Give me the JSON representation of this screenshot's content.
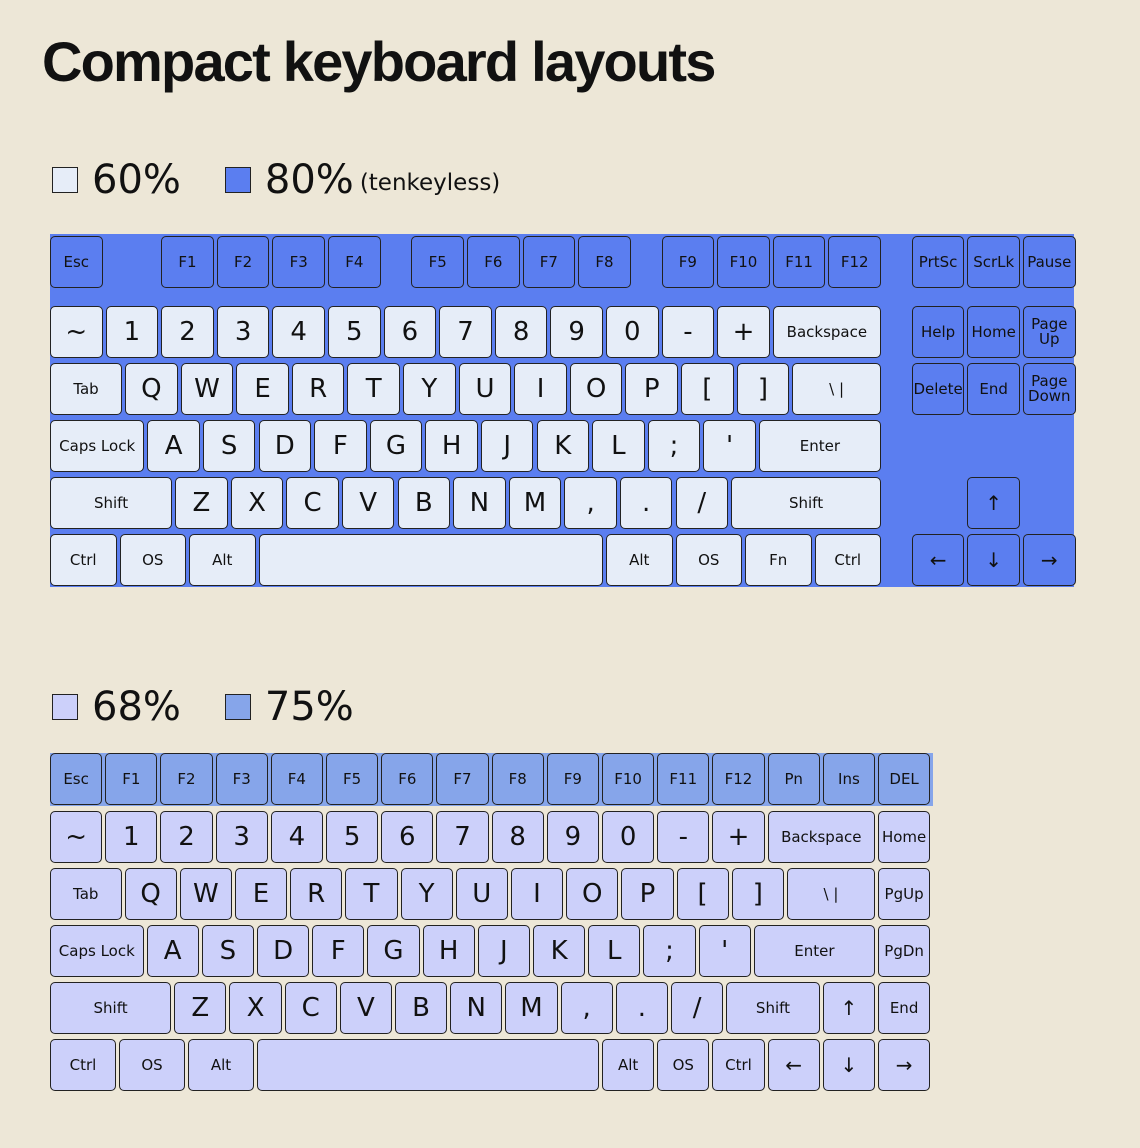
{
  "title": "Compact keyboard layouts",
  "keyboards": [
    {
      "legend": [
        {
          "label": "60%",
          "color": "#e6edf8"
        },
        {
          "label": "80%",
          "note": "(tenkeyless)",
          "color": "#5b7ef0"
        }
      ],
      "rows": [
        [
          "Esc",
          "F1",
          "F2",
          "F3",
          "F4",
          "F5",
          "F6",
          "F7",
          "F8",
          "F9",
          "F10",
          "F11",
          "F12",
          "PrtSc",
          "ScrLk",
          "Pause"
        ],
        [
          "~",
          "1",
          "2",
          "3",
          "4",
          "5",
          "6",
          "7",
          "8",
          "9",
          "0",
          "-",
          "+",
          "Backspace",
          "Help",
          "Home",
          "Page Up"
        ],
        [
          "Tab",
          "Q",
          "W",
          "E",
          "R",
          "T",
          "Y",
          "U",
          "I",
          "O",
          "P",
          "[",
          "]",
          "\\ |",
          "Delete",
          "End",
          "Page Down"
        ],
        [
          "Caps Lock",
          "A",
          "S",
          "D",
          "F",
          "G",
          "H",
          "J",
          "K",
          "L",
          ";",
          "'",
          "Enter"
        ],
        [
          "Shift",
          "Z",
          "X",
          "C",
          "V",
          "B",
          "N",
          "M",
          ",",
          ".",
          "/",
          "Shift",
          "↑"
        ],
        [
          "Ctrl",
          "OS",
          "Alt",
          "Alt",
          "OS",
          "Fn",
          "Ctrl",
          "←",
          "↓",
          "→"
        ]
      ]
    },
    {
      "legend": [
        {
          "label": "68%",
          "color": "#ccd0fa"
        },
        {
          "label": "75%",
          "color": "#86a5ea"
        }
      ],
      "rows": [
        [
          "Esc",
          "F1",
          "F2",
          "F3",
          "F4",
          "F5",
          "F6",
          "F7",
          "F8",
          "F9",
          "F10",
          "F11",
          "F12",
          "Pn",
          "Ins",
          "DEL"
        ],
        [
          "~",
          "1",
          "2",
          "3",
          "4",
          "5",
          "6",
          "7",
          "8",
          "9",
          "0",
          "-",
          "+",
          "Backspace",
          "Home"
        ],
        [
          "Tab",
          "Q",
          "W",
          "E",
          "R",
          "T",
          "Y",
          "U",
          "I",
          "O",
          "P",
          "[",
          "]",
          "\\ |",
          "PgUp"
        ],
        [
          "Caps Lock",
          "A",
          "S",
          "D",
          "F",
          "G",
          "H",
          "J",
          "K",
          "L",
          ";",
          "'",
          "Enter",
          "PgDn"
        ],
        [
          "Shift",
          "Z",
          "X",
          "C",
          "V",
          "B",
          "N",
          "M",
          ",",
          ".",
          "/",
          "Shift",
          "↑",
          "End"
        ],
        [
          "Ctrl",
          "OS",
          "Alt",
          "Alt",
          "OS",
          "Ctrl",
          "←",
          "↓",
          "→"
        ]
      ]
    }
  ]
}
